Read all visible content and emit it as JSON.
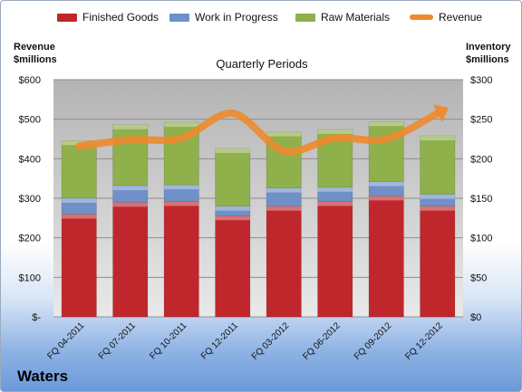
{
  "company": "Waters",
  "chart_data": {
    "type": "bar",
    "stacked": true,
    "subtitle": "Quarterly Periods",
    "y_left_label_line1": "Revenue",
    "y_left_label_line2": "$millions",
    "y_right_label_line1": "Inventory",
    "y_right_label_line2": "$millions",
    "categories": [
      "FQ 04-2011",
      "FQ 07-2011",
      "FQ 10-2011",
      "FQ 12-2011",
      "FQ 03-2012",
      "FQ 06-2012",
      "FQ 09-2012",
      "FQ 12-2012"
    ],
    "series": [
      {
        "name": "Finished Goods",
        "axis": "right",
        "color": "#c0272d",
        "values": [
          130,
          145,
          146,
          128,
          140,
          146,
          153,
          140
        ]
      },
      {
        "name": "Work in Progress",
        "axis": "right",
        "color": "#6f90c8",
        "values": [
          20,
          21,
          21,
          12,
          23,
          18,
          18,
          15
        ]
      },
      {
        "name": "Raw Materials",
        "axis": "right",
        "color": "#8fb04b",
        "values": [
          73,
          77,
          79,
          73,
          71,
          73,
          76,
          74
        ]
      },
      {
        "name": "Revenue",
        "type": "line",
        "axis": "left",
        "color": "#ee8a2e",
        "values": [
          432,
          448,
          452,
          515,
          420,
          452,
          450,
          515
        ]
      }
    ],
    "y_left": {
      "min": 0,
      "max": 600,
      "ticks": [
        0,
        100,
        200,
        300,
        400,
        500,
        600
      ],
      "tick_labels": [
        "$-",
        "$100",
        "$200",
        "$300",
        "$400",
        "$500",
        "$600"
      ]
    },
    "y_right": {
      "min": 0,
      "max": 300,
      "ticks": [
        0,
        50,
        100,
        150,
        200,
        250,
        300
      ],
      "tick_labels": [
        "$0",
        "$50",
        "$100",
        "$150",
        "$200",
        "$250",
        "$300"
      ]
    },
    "grid": true,
    "legend": "top"
  }
}
